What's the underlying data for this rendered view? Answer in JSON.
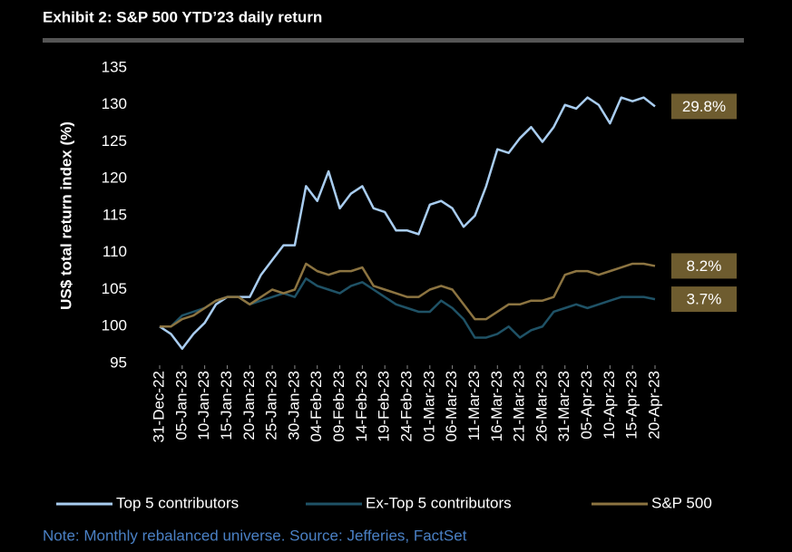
{
  "chart_data": {
    "type": "line",
    "title": "Exhibit 2: S&P 500 YTD’23 daily return",
    "y_label": "US$ total return index (%)",
    "note": "Note: Monthly rebalanced universe. Source: Jefferies, FactSet",
    "categories": [
      "31-Dec-22",
      null,
      "05-Jan-23",
      null,
      "10-Jan-23",
      null,
      "15-Jan-23",
      null,
      "20-Jan-23",
      null,
      "25-Jan-23",
      null,
      "30-Jan-23",
      null,
      "04-Feb-23",
      null,
      "09-Feb-23",
      null,
      "14-Feb-23",
      null,
      "19-Feb-23",
      null,
      "24-Feb-23",
      null,
      "01-Mar-23",
      null,
      "06-Mar-23",
      null,
      "11-Mar-23",
      null,
      "16-Mar-23",
      null,
      "21-Mar-23",
      null,
      "26-Mar-23",
      null,
      "31-Mar-23",
      null,
      "05-Apr-23",
      null,
      "10-Apr-23",
      null,
      "15-Apr-23",
      null,
      "20-Apr-23"
    ],
    "series": [
      {
        "name": "Top 5 contributors",
        "color": "#a9cdf0",
        "end_label": "29.8%",
        "values": [
          100,
          99,
          97,
          99,
          100.5,
          103,
          104,
          104,
          104,
          107,
          109,
          111,
          111,
          119,
          117,
          121,
          116,
          118,
          119,
          116,
          115.5,
          113,
          113,
          112.5,
          116.5,
          117,
          116,
          113.5,
          115,
          119,
          124,
          123.5,
          125.5,
          127,
          125,
          127,
          130,
          129.5,
          131,
          130,
          127.5,
          131,
          130.5,
          131,
          129.8
        ]
      },
      {
        "name": "Ex-Top 5 contributors",
        "color": "#1f5266",
        "end_label": "3.7%",
        "values": [
          100,
          100,
          101.5,
          102,
          102.5,
          103.5,
          104,
          104,
          103,
          103.5,
          104,
          104.5,
          104,
          106.5,
          105.5,
          105,
          104.5,
          105.5,
          106,
          105,
          104,
          103,
          102.5,
          102,
          102,
          103.5,
          102.5,
          101,
          98.5,
          98.5,
          99,
          100,
          98.5,
          99.5,
          100,
          102,
          102.5,
          103,
          102.5,
          103,
          103.5,
          104,
          104,
          104,
          103.7
        ]
      },
      {
        "name": "S&P 500",
        "color": "#8c7441",
        "end_label": "8.2%",
        "values": [
          100,
          100,
          101,
          101.5,
          102.5,
          103.5,
          104,
          104,
          103,
          104,
          105,
          104.5,
          105,
          108.5,
          107.5,
          107,
          107.5,
          107.5,
          108,
          105.5,
          105,
          104.5,
          104,
          104,
          105,
          105.5,
          105,
          103,
          101,
          101,
          102,
          103,
          103,
          103.5,
          103.5,
          104,
          107,
          107.5,
          107.5,
          107,
          107.5,
          108,
          108.5,
          108.5,
          108.2
        ]
      }
    ],
    "ylim": [
      95,
      135
    ],
    "yticks": [
      95,
      100,
      105,
      110,
      115,
      120,
      125,
      130,
      135
    ],
    "label_box_color": "#6e5c2f"
  }
}
